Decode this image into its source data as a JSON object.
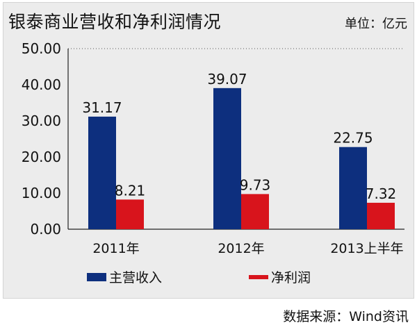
{
  "header": {
    "title": "银泰商业营收和净利润情况",
    "unit": "单位：亿元"
  },
  "footer": {
    "source": "数据来源：Wind资讯"
  },
  "colors": {
    "revenue": "#0d2f7e",
    "profit": "#d8141c",
    "panel": "#ececec"
  },
  "chart_data": {
    "type": "bar",
    "title": "银泰商业营收和净利润情况",
    "categories": [
      "2011年",
      "2012年",
      "2013上半年"
    ],
    "series": [
      {
        "name": "主营收入",
        "values": [
          31.17,
          39.07,
          22.75
        ],
        "labels": [
          "31.17",
          "39.07",
          "22.75"
        ]
      },
      {
        "name": "净利润",
        "values": [
          8.21,
          9.73,
          7.32
        ],
        "labels": [
          "8.21",
          "9.73",
          "7.32"
        ]
      }
    ],
    "ylim": [
      0,
      50
    ],
    "yticks": [
      "0.00",
      "10.00",
      "20.00",
      "30.00",
      "40.00",
      "50.00"
    ],
    "grid": "dotted line at top only",
    "legend_position": "bottom"
  }
}
